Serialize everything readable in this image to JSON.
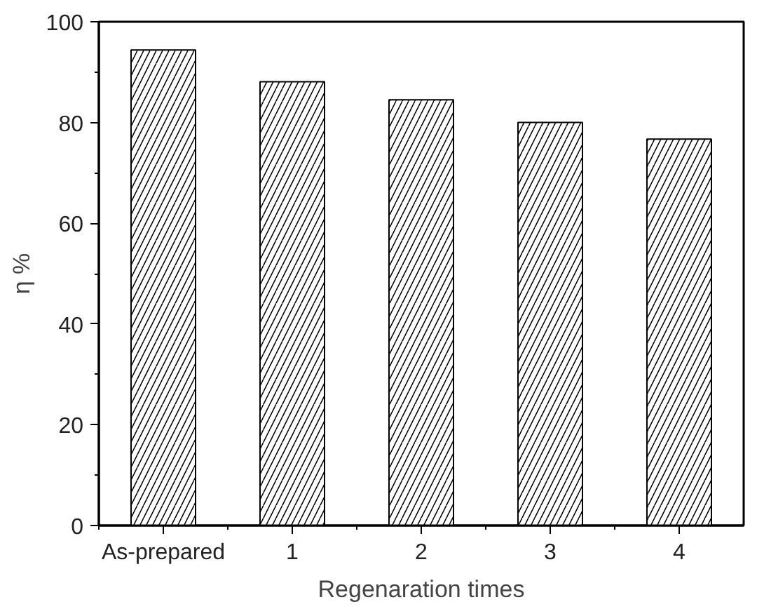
{
  "chart_data": {
    "type": "bar",
    "xlabel": "Regenaration times",
    "ylabel": "η %",
    "categories": [
      "As-prepared",
      "1",
      "2",
      "3",
      "4"
    ],
    "values": [
      94.4,
      88.1,
      84.5,
      80.0,
      76.7
    ],
    "color": "#ffffff",
    "ylim": [
      0,
      100
    ],
    "yticks": [
      0,
      20,
      40,
      60,
      80,
      100
    ],
    "grid": false
  }
}
